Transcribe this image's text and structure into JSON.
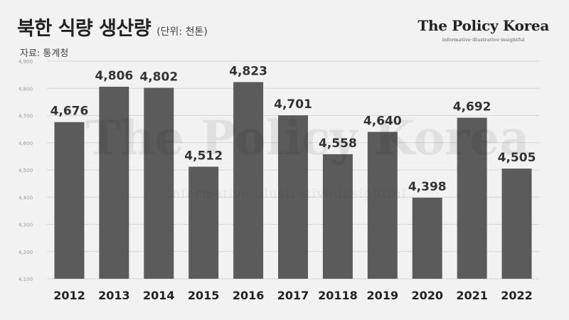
{
  "header": {
    "title": "북한 식량 생산량",
    "unit": "(단위: 천톤)",
    "source": "자료: 통계청"
  },
  "brand": {
    "name": "The Policy Korea",
    "tagline": "informative·illustrative·insightful"
  },
  "colors": {
    "bar": "#5b5b5b",
    "grid": "#d6d6d6",
    "background": "#f2f2f2"
  },
  "chart_data": {
    "type": "bar",
    "title": "북한 식량 생산량",
    "xlabel": "",
    "ylabel": "",
    "categories": [
      "2012",
      "2013",
      "2014",
      "2015",
      "2016",
      "2017",
      "20118",
      "2019",
      "2020",
      "2021",
      "2022"
    ],
    "values": [
      4676,
      4806,
      4802,
      4512,
      4823,
      4701,
      4558,
      4640,
      4398,
      4692,
      4505
    ],
    "value_labels": [
      "4,676",
      "4,806",
      "4,802",
      "4,512",
      "4,823",
      "4,701",
      "4,558",
      "4,640",
      "4,398",
      "4,692",
      "4,505"
    ],
    "ylim": [
      4100,
      4900
    ],
    "yticks": [
      4100,
      4200,
      4300,
      4400,
      4500,
      4600,
      4700,
      4800,
      4900
    ],
    "ytick_labels": [
      "4,100",
      "4,200",
      "4,300",
      "4,400",
      "4,500",
      "4,600",
      "4,700",
      "4,800",
      "4,900"
    ],
    "grid": true,
    "legend": "none"
  }
}
